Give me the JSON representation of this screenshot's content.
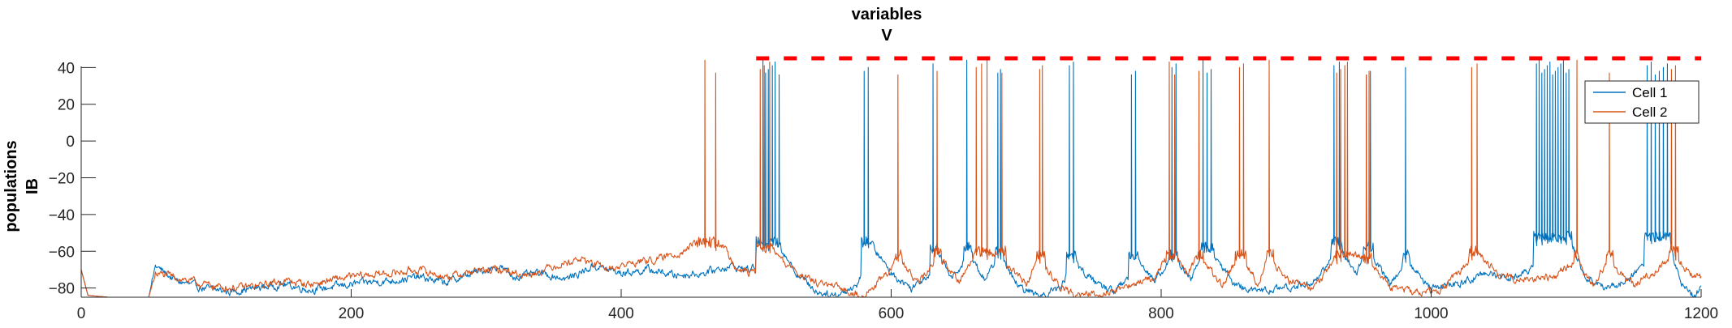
{
  "chart_data": {
    "type": "line",
    "title": "variables",
    "subtitle": "V",
    "ylabel_line1": "populations",
    "ylabel_line2": "IB",
    "xlabel": "",
    "xlim": [
      0,
      1200
    ],
    "ylim": [
      -85,
      45
    ],
    "x_ticks": [
      0,
      200,
      400,
      600,
      800,
      1000,
      1200
    ],
    "y_ticks": [
      40,
      20,
      0,
      -20,
      -40,
      -60,
      -80
    ],
    "grid": false,
    "legend_position": "top-right",
    "colors": {
      "cell1": "#0072BD",
      "cell2": "#D95319",
      "threshold": "#FF0000"
    },
    "threshold": {
      "value": 45,
      "x_start": 500,
      "x_end": 1200,
      "style": "dashed"
    },
    "series": [
      {
        "name": "Cell 1",
        "color": "#0072BD",
        "spike_times": [
          505,
          507,
          509,
          512,
          514,
          517,
          580,
          583,
          631,
          656,
          679,
          681,
          732,
          735,
          778,
          781,
          808,
          811,
          831,
          834,
          837,
          928,
          932,
          952,
          955,
          981,
          1078,
          1080,
          1082,
          1084,
          1086,
          1088,
          1090,
          1092,
          1094,
          1096,
          1098,
          1100,
          1102,
          1160,
          1163,
          1166,
          1169,
          1172,
          1175
        ],
        "bursts": [
          [
            500,
            518,
            -55
          ],
          [
            578,
            585,
            -55
          ],
          [
            629,
            634,
            -58
          ],
          [
            654,
            660,
            -58
          ],
          [
            677,
            683,
            -60
          ],
          [
            730,
            737,
            -62
          ],
          [
            776,
            783,
            -62
          ],
          [
            806,
            813,
            -62
          ],
          [
            829,
            839,
            -58
          ],
          [
            926,
            934,
            -55
          ],
          [
            950,
            957,
            -58
          ],
          [
            979,
            984,
            -62
          ],
          [
            1076,
            1104,
            -52
          ],
          [
            1158,
            1177,
            -52
          ]
        ],
        "trace": [
          [
            0,
            -70
          ],
          [
            5,
            -84
          ],
          [
            20,
            -85
          ],
          [
            50,
            -85
          ],
          [
            55,
            -68
          ],
          [
            70,
            -76
          ],
          [
            90,
            -80
          ],
          [
            110,
            -82
          ],
          [
            130,
            -80
          ],
          [
            150,
            -78
          ],
          [
            170,
            -81
          ],
          [
            190,
            -79
          ],
          [
            210,
            -77
          ],
          [
            230,
            -76
          ],
          [
            250,
            -74
          ],
          [
            270,
            -77
          ],
          [
            290,
            -72
          ],
          [
            310,
            -68
          ],
          [
            320,
            -74
          ],
          [
            340,
            -72
          ],
          [
            360,
            -75
          ],
          [
            380,
            -68
          ],
          [
            400,
            -72
          ],
          [
            420,
            -70
          ],
          [
            440,
            -73
          ],
          [
            460,
            -72
          ],
          [
            480,
            -68
          ],
          [
            495,
            -70
          ],
          [
            500,
            -68
          ],
          [
            518,
            -58
          ],
          [
            530,
            -72
          ],
          [
            545,
            -82
          ],
          [
            560,
            -84
          ],
          [
            575,
            -78
          ],
          [
            585,
            -56
          ],
          [
            600,
            -72
          ],
          [
            615,
            -80
          ],
          [
            628,
            -72
          ],
          [
            634,
            -60
          ],
          [
            645,
            -75
          ],
          [
            655,
            -64
          ],
          [
            660,
            -64
          ],
          [
            670,
            -76
          ],
          [
            678,
            -64
          ],
          [
            683,
            -66
          ],
          [
            695,
            -80
          ],
          [
            710,
            -84
          ],
          [
            725,
            -80
          ],
          [
            735,
            -66
          ],
          [
            750,
            -76
          ],
          [
            765,
            -82
          ],
          [
            776,
            -74
          ],
          [
            783,
            -64
          ],
          [
            795,
            -76
          ],
          [
            806,
            -66
          ],
          [
            813,
            -66
          ],
          [
            822,
            -76
          ],
          [
            830,
            -62
          ],
          [
            840,
            -64
          ],
          [
            855,
            -78
          ],
          [
            870,
            -82
          ],
          [
            890,
            -80
          ],
          [
            910,
            -78
          ],
          [
            926,
            -66
          ],
          [
            934,
            -60
          ],
          [
            945,
            -72
          ],
          [
            950,
            -62
          ],
          [
            958,
            -64
          ],
          [
            970,
            -78
          ],
          [
            980,
            -66
          ],
          [
            985,
            -68
          ],
          [
            1000,
            -80
          ],
          [
            1020,
            -78
          ],
          [
            1040,
            -72
          ],
          [
            1060,
            -74
          ],
          [
            1075,
            -70
          ],
          [
            1104,
            -56
          ],
          [
            1115,
            -74
          ],
          [
            1130,
            -80
          ],
          [
            1145,
            -76
          ],
          [
            1158,
            -66
          ],
          [
            1177,
            -56
          ],
          [
            1185,
            -78
          ],
          [
            1195,
            -84
          ],
          [
            1200,
            -80
          ]
        ]
      },
      {
        "name": "Cell 2",
        "color": "#D95319",
        "spike_times": [
          462,
          470,
          503,
          506,
          510,
          605,
          634,
          663,
          667,
          671,
          682,
          710,
          712,
          806,
          810,
          828,
          858,
          861,
          880,
          930,
          933,
          936,
          938,
          952,
          954,
          1030,
          1034,
          1108,
          1132,
          1178,
          1181
        ],
        "bursts": [
          [
            455,
            472,
            -55
          ],
          [
            500,
            512,
            -58
          ],
          [
            603,
            608,
            -62
          ],
          [
            632,
            637,
            -60
          ],
          [
            661,
            673,
            -60
          ],
          [
            680,
            685,
            -60
          ],
          [
            708,
            714,
            -62
          ],
          [
            804,
            812,
            -62
          ],
          [
            826,
            831,
            -62
          ],
          [
            855,
            863,
            -62
          ],
          [
            878,
            883,
            -62
          ],
          [
            928,
            940,
            -62
          ],
          [
            950,
            956,
            -64
          ],
          [
            1028,
            1036,
            -60
          ],
          [
            1106,
            1110,
            -62
          ],
          [
            1130,
            1135,
            -62
          ],
          [
            1176,
            1183,
            -60
          ]
        ],
        "trace": [
          [
            0,
            -70
          ],
          [
            5,
            -84
          ],
          [
            20,
            -85
          ],
          [
            50,
            -85
          ],
          [
            55,
            -72
          ],
          [
            70,
            -74
          ],
          [
            90,
            -78
          ],
          [
            110,
            -80
          ],
          [
            130,
            -79
          ],
          [
            150,
            -76
          ],
          [
            170,
            -78
          ],
          [
            190,
            -75
          ],
          [
            210,
            -73
          ],
          [
            230,
            -72
          ],
          [
            250,
            -70
          ],
          [
            270,
            -74
          ],
          [
            290,
            -71
          ],
          [
            310,
            -70
          ],
          [
            330,
            -73
          ],
          [
            350,
            -68
          ],
          [
            370,
            -64
          ],
          [
            390,
            -70
          ],
          [
            410,
            -66
          ],
          [
            430,
            -64
          ],
          [
            445,
            -60
          ],
          [
            455,
            -56
          ],
          [
            472,
            -54
          ],
          [
            485,
            -68
          ],
          [
            495,
            -72
          ],
          [
            500,
            -70
          ],
          [
            512,
            -58
          ],
          [
            520,
            -66
          ],
          [
            540,
            -76
          ],
          [
            560,
            -80
          ],
          [
            580,
            -84
          ],
          [
            595,
            -74
          ],
          [
            603,
            -66
          ],
          [
            608,
            -66
          ],
          [
            620,
            -78
          ],
          [
            632,
            -66
          ],
          [
            637,
            -64
          ],
          [
            650,
            -76
          ],
          [
            661,
            -64
          ],
          [
            673,
            -62
          ],
          [
            680,
            -62
          ],
          [
            685,
            -66
          ],
          [
            700,
            -78
          ],
          [
            708,
            -66
          ],
          [
            714,
            -68
          ],
          [
            725,
            -80
          ],
          [
            740,
            -84
          ],
          [
            760,
            -82
          ],
          [
            780,
            -78
          ],
          [
            795,
            -74
          ],
          [
            804,
            -64
          ],
          [
            812,
            -66
          ],
          [
            820,
            -72
          ],
          [
            826,
            -64
          ],
          [
            831,
            -66
          ],
          [
            845,
            -78
          ],
          [
            855,
            -66
          ],
          [
            863,
            -66
          ],
          [
            872,
            -78
          ],
          [
            878,
            -64
          ],
          [
            883,
            -66
          ],
          [
            895,
            -76
          ],
          [
            915,
            -80
          ],
          [
            928,
            -64
          ],
          [
            940,
            -62
          ],
          [
            950,
            -64
          ],
          [
            956,
            -66
          ],
          [
            970,
            -80
          ],
          [
            990,
            -82
          ],
          [
            1010,
            -80
          ],
          [
            1028,
            -66
          ],
          [
            1036,
            -62
          ],
          [
            1050,
            -72
          ],
          [
            1070,
            -76
          ],
          [
            1090,
            -74
          ],
          [
            1106,
            -66
          ],
          [
            1110,
            -68
          ],
          [
            1120,
            -78
          ],
          [
            1130,
            -66
          ],
          [
            1135,
            -68
          ],
          [
            1150,
            -78
          ],
          [
            1165,
            -72
          ],
          [
            1176,
            -64
          ],
          [
            1183,
            -64
          ],
          [
            1192,
            -72
          ],
          [
            1200,
            -74
          ]
        ]
      }
    ]
  }
}
